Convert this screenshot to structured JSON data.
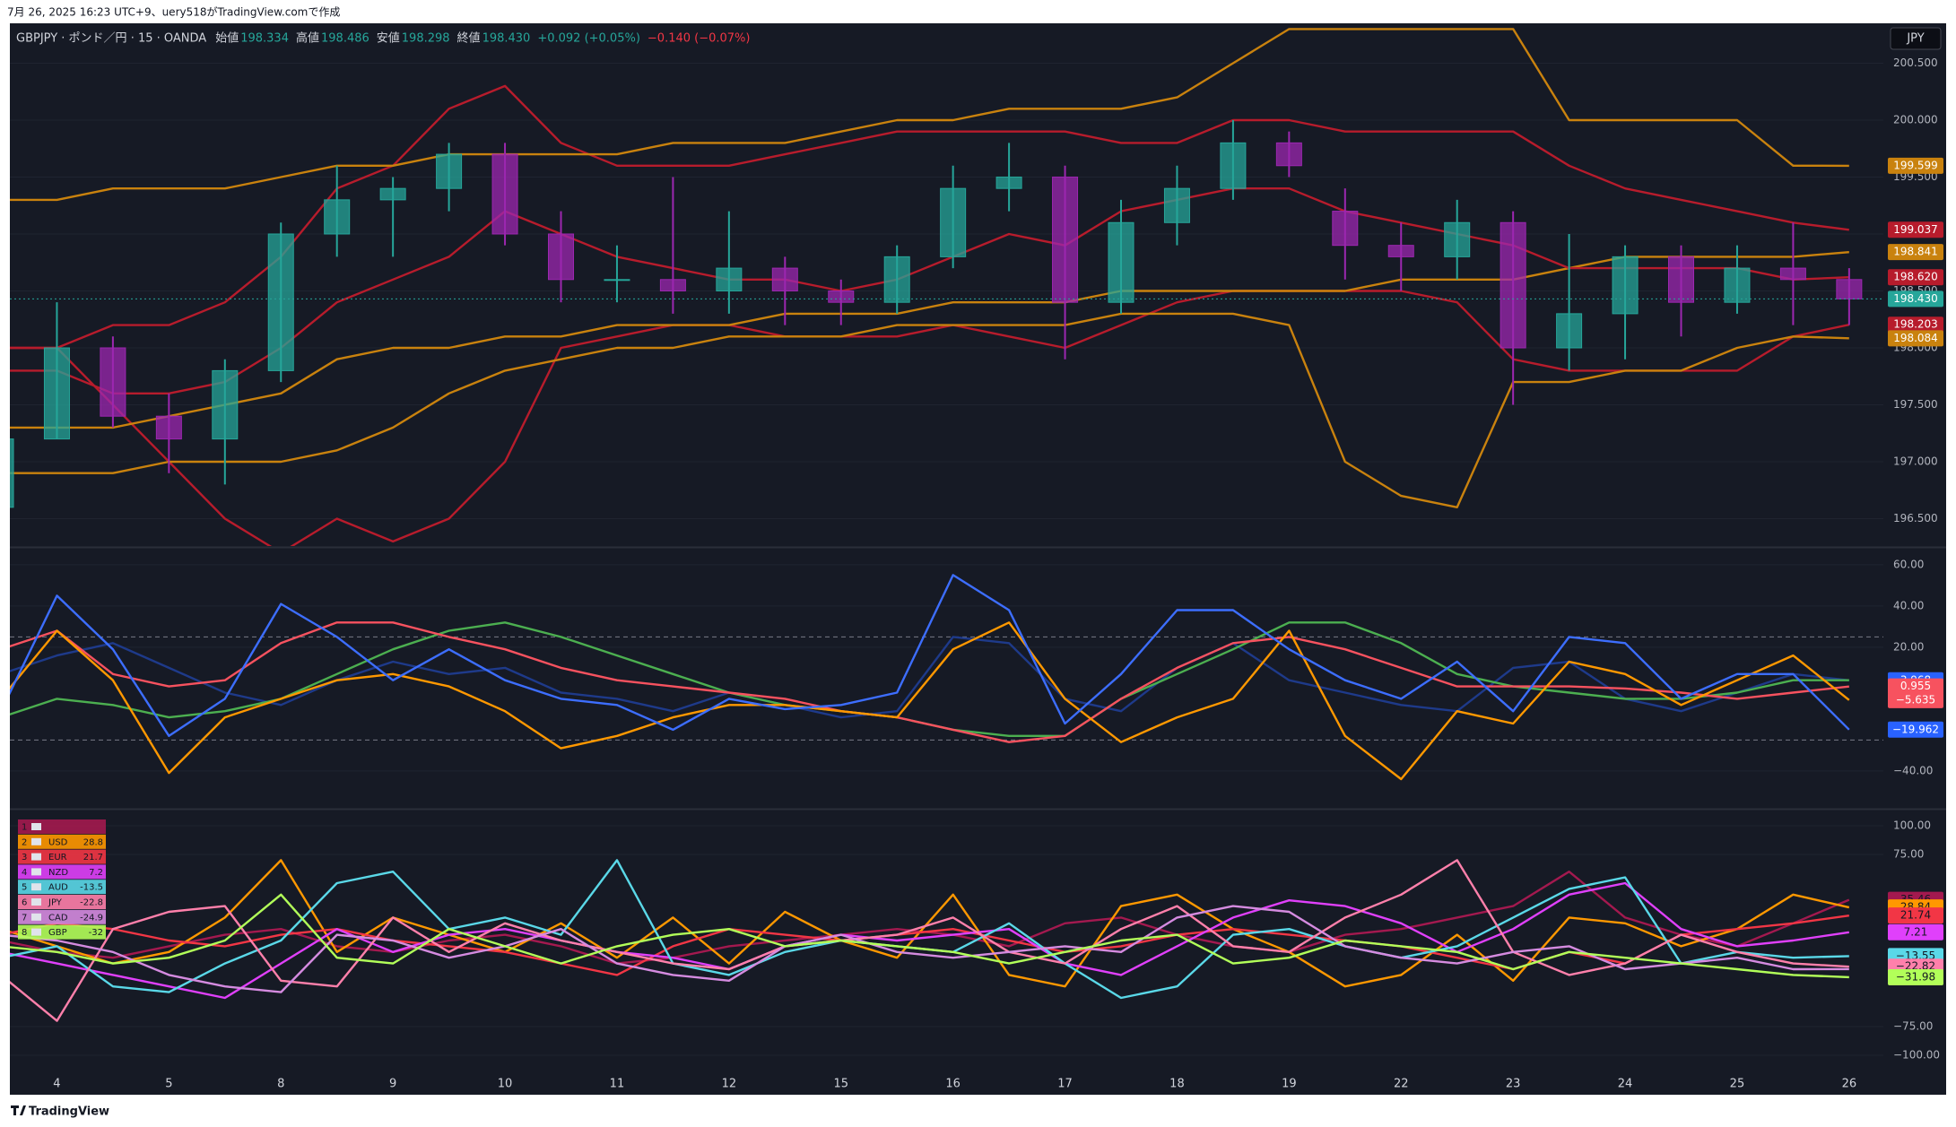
{
  "page": {
    "caption": "7月 26, 2025 16:23 UTC+9、uery518がTradingView.comで作成",
    "footer": "TradingView"
  },
  "chart_data": [
    {
      "type": "candlestick",
      "title": "GBPJPY · ポンド／円 · 15 · OANDA",
      "currency": "JPY",
      "ohlc_legend": [
        {
          "label": "始値",
          "value": "198.334"
        },
        {
          "label": "高値",
          "value": "198.486"
        },
        {
          "label": "安値",
          "value": "198.298"
        },
        {
          "label": "終値",
          "value": "198.430"
        }
      ],
      "change": "+0.092 (+0.05%)",
      "change_2": "−0.140 (−0.07%)",
      "up_color": "#26a69a",
      "down_color": "#9c27b0",
      "open": [
        196.6,
        197.2,
        198.0,
        197.4,
        197.2,
        197.8,
        199.0,
        199.3,
        199.4,
        199.7,
        199.0,
        198.6,
        198.6,
        198.5,
        198.7,
        198.5,
        198.4,
        198.8,
        199.4,
        199.5,
        198.4,
        199.1,
        199.4,
        199.8,
        199.2,
        198.9,
        198.8,
        199.1,
        198.0,
        198.3,
        198.8,
        198.4,
        198.7,
        198.6
      ],
      "high": [
        197.3,
        198.4,
        198.1,
        197.6,
        197.9,
        199.1,
        199.6,
        199.5,
        199.8,
        199.8,
        199.2,
        198.9,
        199.5,
        199.2,
        198.8,
        198.6,
        198.9,
        199.6,
        199.8,
        199.6,
        199.3,
        199.6,
        200.0,
        199.9,
        199.4,
        199.1,
        199.3,
        199.2,
        199.0,
        198.9,
        198.9,
        198.9,
        199.1,
        198.7
      ],
      "low": [
        196.3,
        197.2,
        197.3,
        196.9,
        196.8,
        197.7,
        198.8,
        198.8,
        199.2,
        198.9,
        198.4,
        198.4,
        198.3,
        198.3,
        198.2,
        198.2,
        198.3,
        198.7,
        199.2,
        197.9,
        198.3,
        198.9,
        199.3,
        199.5,
        198.6,
        198.5,
        198.6,
        197.5,
        197.8,
        197.9,
        198.1,
        198.3,
        198.2,
        198.2
      ],
      "close": [
        197.2,
        198.0,
        197.4,
        197.2,
        197.8,
        199.0,
        199.3,
        199.4,
        199.7,
        199.0,
        198.6,
        198.6,
        198.5,
        198.7,
        198.5,
        198.4,
        198.8,
        199.4,
        199.5,
        198.4,
        199.1,
        199.4,
        199.8,
        199.6,
        198.9,
        198.8,
        199.1,
        198.0,
        198.3,
        198.8,
        198.4,
        198.7,
        198.6,
        198.43
      ],
      "series": [
        {
          "color": "#b71c2c",
          "last_label": "199.037",
          "values": [
            198.0,
            198.0,
            198.2,
            198.2,
            198.4,
            198.8,
            199.4,
            199.6,
            200.1,
            200.3,
            199.8,
            199.6,
            199.6,
            199.6,
            199.7,
            199.8,
            199.9,
            199.9,
            199.9,
            199.9,
            199.8,
            199.8,
            200.0,
            200.0,
            199.9,
            199.9,
            199.9,
            199.9,
            199.6,
            199.4,
            199.3,
            199.2,
            199.1,
            199.037
          ]
        },
        {
          "color": "#b71c2c",
          "last_label": "198.203",
          "values": [
            198.0,
            198.0,
            197.5,
            197.0,
            196.5,
            196.2,
            196.5,
            196.3,
            196.5,
            197.0,
            198.0,
            198.1,
            198.2,
            198.2,
            198.1,
            198.1,
            198.1,
            198.2,
            198.1,
            198.0,
            198.2,
            198.4,
            198.5,
            198.5,
            198.5,
            198.5,
            198.4,
            197.9,
            197.8,
            197.8,
            197.8,
            197.8,
            198.1,
            198.203
          ]
        },
        {
          "color": "#c9820e",
          "last_label": "199.599",
          "values": [
            199.3,
            199.3,
            199.4,
            199.4,
            199.4,
            199.5,
            199.6,
            199.6,
            199.7,
            199.7,
            199.7,
            199.7,
            199.8,
            199.8,
            199.8,
            199.9,
            200.0,
            200.0,
            200.1,
            200.1,
            200.1,
            200.2,
            200.5,
            200.8,
            200.8,
            200.8,
            200.8,
            200.8,
            200.0,
            200.0,
            200.0,
            200.0,
            199.6,
            199.599
          ]
        },
        {
          "color": "#c9820e",
          "last_label": "198.084",
          "values": [
            196.9,
            196.9,
            196.9,
            197.0,
            197.0,
            197.0,
            197.1,
            197.3,
            197.6,
            197.8,
            197.9,
            198.0,
            198.0,
            198.1,
            198.1,
            198.1,
            198.2,
            198.2,
            198.2,
            198.2,
            198.3,
            198.3,
            198.3,
            198.2,
            197.0,
            196.7,
            196.6,
            197.7,
            197.7,
            197.8,
            197.8,
            198.0,
            198.1,
            198.084
          ]
        },
        {
          "color": "#c9820e",
          "last_label": "198.841",
          "values": [
            197.3,
            197.3,
            197.3,
            197.4,
            197.5,
            197.6,
            197.9,
            198.0,
            198.0,
            198.1,
            198.1,
            198.2,
            198.2,
            198.2,
            198.3,
            198.3,
            198.3,
            198.4,
            198.4,
            198.4,
            198.5,
            198.5,
            198.5,
            198.5,
            198.5,
            198.6,
            198.6,
            198.6,
            198.7,
            198.8,
            198.8,
            198.8,
            198.8,
            198.841
          ]
        },
        {
          "color": "#b71c2c",
          "last_label": "198.620",
          "values": [
            197.8,
            197.8,
            197.6,
            197.6,
            197.7,
            198.0,
            198.4,
            198.6,
            198.8,
            199.2,
            199.0,
            198.8,
            198.7,
            198.6,
            198.6,
            198.5,
            198.6,
            198.8,
            199.0,
            198.9,
            199.2,
            199.3,
            199.4,
            199.4,
            199.2,
            199.1,
            199.0,
            198.9,
            198.7,
            198.7,
            198.7,
            198.7,
            198.6,
            198.62
          ]
        }
      ],
      "ylim": [
        196.26,
        200.85
      ],
      "yticks": [
        {
          "value": 196.5,
          "label": "196.500"
        },
        {
          "value": 197,
          "label": "197.000"
        },
        {
          "value": 197.5,
          "label": "197.500"
        },
        {
          "value": 198,
          "label": "198.000"
        },
        {
          "value": 198.5,
          "label": "198.500"
        },
        {
          "value": 199,
          "label": "199.000"
        },
        {
          "value": 199.5,
          "label": "199.500"
        },
        {
          "value": 200,
          "label": "200.000"
        },
        {
          "value": 200.5,
          "label": "200.500"
        }
      ],
      "grid": true
    },
    {
      "type": "line",
      "series": [
        {
          "color": "#1e3a8a",
          "last_label": "3.968",
          "values": [
            7,
            16,
            22,
            10,
            -2,
            -8,
            4,
            13,
            7,
            10,
            -2,
            -5,
            -11,
            -2,
            -8,
            -14,
            -11,
            25,
            22,
            -5,
            -11,
            10,
            22,
            4,
            -2,
            -8,
            -11,
            10,
            13,
            -5,
            -11,
            -2,
            7,
            3.968
          ]
        },
        {
          "color": "#4caf50",
          "values": [
            -14,
            -5,
            -8,
            -14,
            -11,
            -5,
            7,
            19,
            28,
            32,
            25,
            16,
            7,
            -2,
            -8,
            -11,
            -14,
            -20,
            -23,
            -23,
            -5,
            7,
            19,
            32,
            32,
            22,
            7,
            1,
            -2,
            -5,
            -5,
            -2,
            4,
            4
          ]
        },
        {
          "color": "#f7525f",
          "last_label": "0.955",
          "values": [
            19,
            28,
            7,
            1,
            4,
            22,
            32,
            32,
            25,
            19,
            10,
            4,
            1,
            -2,
            -5,
            -11,
            -14,
            -20,
            -26,
            -23,
            -5,
            10,
            22,
            25,
            19,
            10,
            1,
            1,
            1,
            0,
            -2,
            -5,
            -2,
            0.955
          ]
        },
        {
          "color": "#ff9800",
          "last_label": "−5.635",
          "values": [
            -5,
            28,
            4,
            -41,
            -14,
            -5,
            4,
            7,
            1,
            -11,
            -29,
            -23,
            -14,
            -8,
            -8,
            -11,
            -14,
            19,
            32,
            -5,
            -26,
            -14,
            -5,
            28,
            -23,
            -44,
            -11,
            -17,
            13,
            7,
            -8,
            4,
            16,
            -5.635
          ]
        },
        {
          "color": "#3d6eff",
          "last_label": "−19.962",
          "values": [
            -11,
            45,
            19,
            -23,
            -5,
            41,
            25,
            4,
            19,
            4,
            -5,
            -8,
            -20,
            -5,
            -10,
            -8,
            -2,
            55,
            38,
            -17,
            7,
            38,
            38,
            19,
            4,
            -5,
            13,
            -11,
            25,
            22,
            -5,
            7,
            7,
            -19.962
          ]
        }
      ],
      "label_colors": [
        "#2962ff",
        null,
        "#f7525f",
        "#f7525f",
        "#2962ff"
      ],
      "levels": [
        25,
        -25
      ],
      "ylim": [
        -57.9,
        67.8
      ],
      "yticks": [
        {
          "value": 60,
          "label": "60.00"
        },
        {
          "value": 40,
          "label": "40.00"
        },
        {
          "value": 20,
          "label": "20.00"
        },
        {
          "value": -40,
          "label": "−40.00"
        }
      ],
      "grid": true
    },
    {
      "type": "line",
      "categories": [
        null,
        "4",
        null,
        "5",
        null,
        "8",
        null,
        "9",
        null,
        "10",
        null,
        "11",
        null,
        "12",
        null,
        "15",
        null,
        "16",
        null,
        "17",
        null,
        "18",
        null,
        "19",
        null,
        "22",
        null,
        "23",
        null,
        "24",
        null,
        "25",
        null,
        "26"
      ],
      "series": [
        {
          "rank": 1,
          "name": null,
          "color": "#a3194f",
          "last_label": "35.46",
          "values": [
            0,
            -10,
            -15,
            -5,
            5,
            10,
            -5,
            -10,
            0,
            5,
            -5,
            -20,
            -15,
            -5,
            0,
            5,
            10,
            5,
            -5,
            15,
            20,
            5,
            -5,
            -10,
            5,
            10,
            20,
            30,
            60,
            20,
            5,
            -5,
            15,
            35.46
          ]
        },
        {
          "rank": 2,
          "name": "USD",
          "legend_label": "28.8",
          "color": "#ff9800",
          "last_label": "28.84",
          "values": [
            10,
            -5,
            -20,
            -10,
            20,
            70,
            -10,
            20,
            5,
            -10,
            15,
            -15,
            20,
            -20,
            25,
            0,
            -15,
            40,
            -30,
            -40,
            30,
            40,
            10,
            -10,
            -40,
            -30,
            5,
            -35,
            20,
            15,
            -5,
            10,
            40,
            28.84
          ]
        },
        {
          "rank": 3,
          "name": "EUR",
          "legend_label": "21.7",
          "color": "#f23645",
          "last_label": "21.74",
          "values": [
            5,
            15,
            10,
            0,
            -5,
            5,
            10,
            0,
            -5,
            -10,
            -20,
            -30,
            -5,
            10,
            5,
            0,
            5,
            10,
            0,
            -10,
            -5,
            5,
            10,
            5,
            0,
            -5,
            -15,
            -25,
            -10,
            -20,
            5,
            10,
            15,
            21.74
          ]
        },
        {
          "rank": 4,
          "name": "NZD",
          "legend_label": "7.2",
          "color": "#e040fb",
          "last_label": "7.21",
          "values": [
            -10,
            -20,
            -30,
            -40,
            -50,
            -20,
            10,
            -10,
            5,
            10,
            0,
            -10,
            -15,
            -25,
            -5,
            5,
            0,
            5,
            10,
            -20,
            -30,
            -5,
            20,
            35,
            30,
            15,
            -10,
            10,
            40,
            50,
            10,
            -5,
            0,
            7.21
          ]
        },
        {
          "rank": 5,
          "name": "AUD",
          "legend_label": "-13.5",
          "color": "#5ad8e8",
          "last_label": "−13.55",
          "values": [
            -15,
            -5,
            -40,
            -45,
            -20,
            0,
            50,
            60,
            10,
            20,
            5,
            70,
            -20,
            -30,
            -10,
            0,
            -5,
            -10,
            15,
            -20,
            -50,
            -40,
            5,
            10,
            -5,
            -15,
            -5,
            20,
            45,
            55,
            -20,
            -10,
            -15,
            -13.55
          ]
        },
        {
          "rank": 6,
          "name": "JPY",
          "legend_label": "-22.8",
          "color": "#ff80ab",
          "last_label": "−22.82",
          "values": [
            -30,
            -70,
            10,
            25,
            30,
            -35,
            -40,
            20,
            -10,
            15,
            0,
            -10,
            -20,
            -25,
            -5,
            0,
            5,
            20,
            -10,
            -20,
            10,
            30,
            -5,
            -10,
            20,
            40,
            70,
            -10,
            -30,
            -20,
            5,
            -10,
            -20,
            -22.82
          ]
        },
        {
          "rank": 7,
          "name": "CAD",
          "legend_label": "-24.9",
          "color": "#d58be0",
          "values": [
            5,
            0,
            -10,
            -30,
            -40,
            -45,
            5,
            0,
            -15,
            -5,
            10,
            -20,
            -30,
            -35,
            -5,
            5,
            -10,
            -15,
            -10,
            -5,
            -10,
            20,
            30,
            25,
            -5,
            -15,
            -20,
            -10,
            -5,
            -25,
            -20,
            -15,
            -25,
            -24.9
          ]
        },
        {
          "rank": 8,
          "name": "GBP",
          "legend_label": "-32",
          "color": "#b2ff59",
          "last_label": "−31.98",
          "values": [
            -5,
            -10,
            -20,
            -15,
            0,
            40,
            -15,
            -20,
            10,
            -5,
            -20,
            -5,
            5,
            10,
            -5,
            0,
            -5,
            -10,
            -20,
            -10,
            0,
            5,
            -20,
            -15,
            0,
            -5,
            -10,
            -25,
            -10,
            -15,
            -20,
            -25,
            -30,
            -31.98
          ]
        }
      ],
      "ylim": [
        -112.5,
        113.3
      ],
      "yticks": [
        {
          "value": 100,
          "label": "100.00"
        },
        {
          "value": 75,
          "label": "75.00"
        },
        {
          "value": -75,
          "label": "−75.00"
        },
        {
          "value": -100,
          "label": "−100.00"
        }
      ],
      "grid": true
    }
  ]
}
